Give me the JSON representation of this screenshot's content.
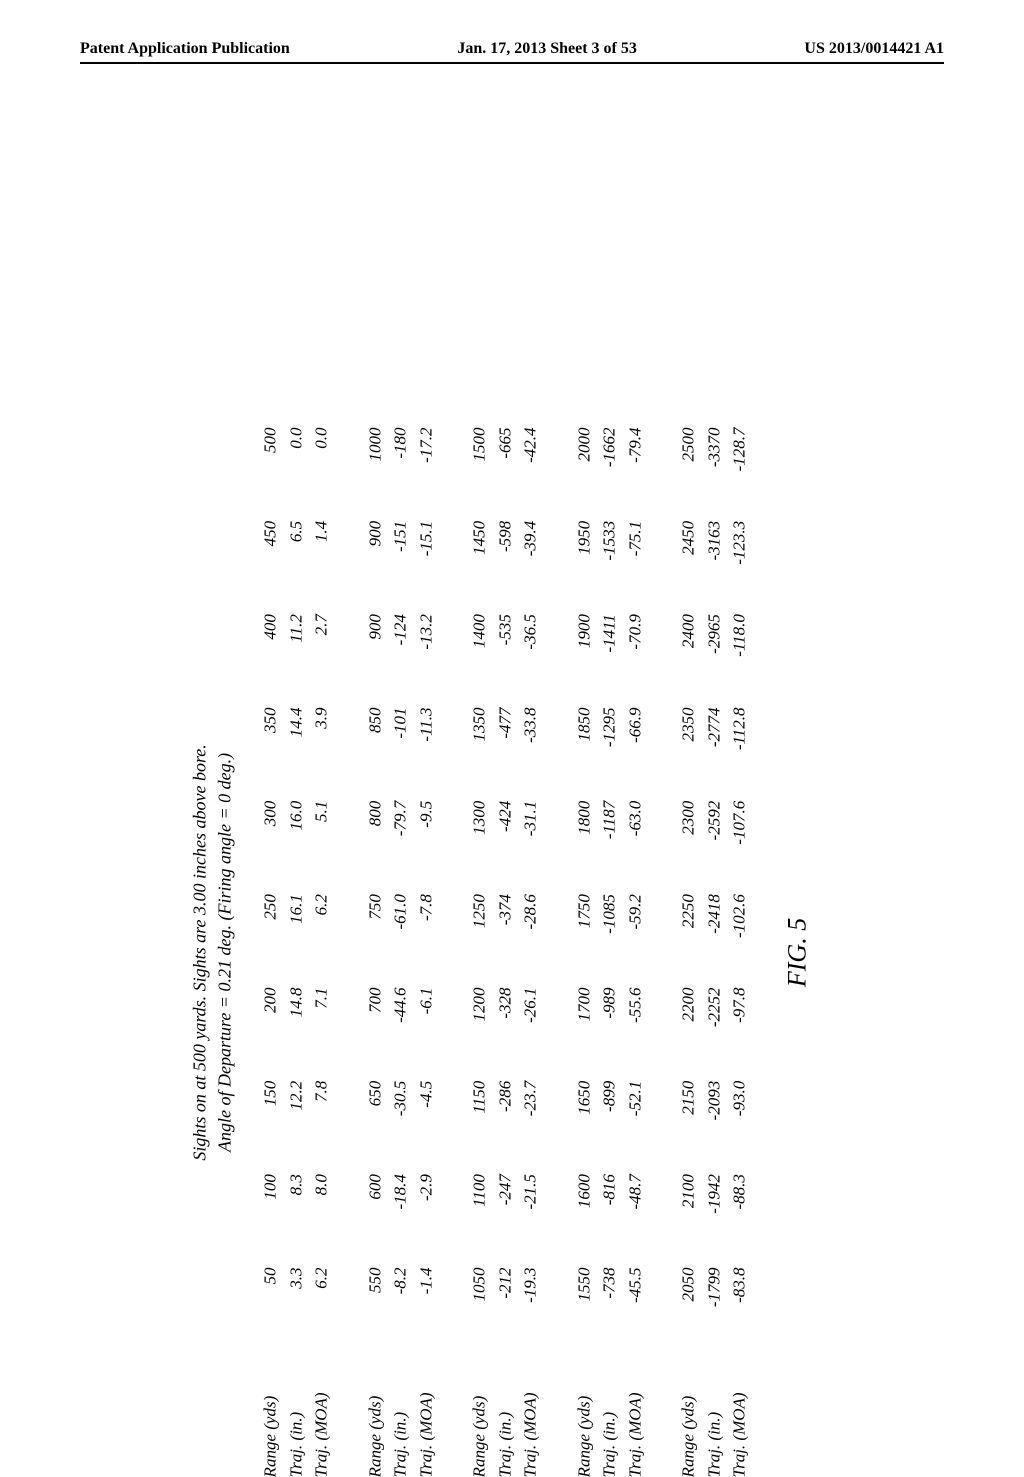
{
  "header": {
    "left": "Patent Application Publication",
    "middle": "Jan. 17, 2013  Sheet 3 of 53",
    "right": "US 2013/0014421 A1"
  },
  "title": {
    "line1": "Sights on at 500 yards. Sights are 3.00 inches above bore.",
    "line2": "Angle of Departure = 0.21 deg. (Firing angle = 0 deg.)"
  },
  "row_labels": {
    "range": "Range (yds)",
    "traj_in": "Traj. (in.)",
    "traj_moa": "Traj. (MOA)"
  },
  "blocks": [
    {
      "cols": [
        {
          "range": "50",
          "in": "3.3",
          "moa": "6.2"
        },
        {
          "range": "100",
          "in": "8.3",
          "moa": "8.0"
        },
        {
          "range": "150",
          "in": "12.2",
          "moa": "7.8"
        },
        {
          "range": "200",
          "in": "14.8",
          "moa": "7.1"
        },
        {
          "range": "250",
          "in": "16.1",
          "moa": "6.2"
        },
        {
          "range": "300",
          "in": "16.0",
          "moa": "5.1"
        },
        {
          "range": "350",
          "in": "14.4",
          "moa": "3.9"
        },
        {
          "range": "400",
          "in": "11.2",
          "moa": "2.7"
        },
        {
          "range": "450",
          "in": "6.5",
          "moa": "1.4"
        },
        {
          "range": "500",
          "in": "0.0",
          "moa": "0.0"
        }
      ]
    },
    {
      "cols": [
        {
          "range": "550",
          "in": "-8.2",
          "moa": "-1.4"
        },
        {
          "range": "600",
          "in": "-18.4",
          "moa": "-2.9"
        },
        {
          "range": "650",
          "in": "-30.5",
          "moa": "-4.5"
        },
        {
          "range": "700",
          "in": "-44.6",
          "moa": "-6.1"
        },
        {
          "range": "750",
          "in": "-61.0",
          "moa": "-7.8"
        },
        {
          "range": "800",
          "in": "-79.7",
          "moa": "-9.5"
        },
        {
          "range": "850",
          "in": "-101",
          "moa": "-11.3"
        },
        {
          "range": "900",
          "in": "-124",
          "moa": "-13.2"
        },
        {
          "range": "900",
          "in": "-151",
          "moa": "-15.1"
        },
        {
          "range": "1000",
          "in": "-180",
          "moa": "-17.2"
        }
      ]
    },
    {
      "cols": [
        {
          "range": "1050",
          "in": "-212",
          "moa": "-19.3"
        },
        {
          "range": "1100",
          "in": "-247",
          "moa": "-21.5"
        },
        {
          "range": "1150",
          "in": "-286",
          "moa": "-23.7"
        },
        {
          "range": "1200",
          "in": "-328",
          "moa": "-26.1"
        },
        {
          "range": "1250",
          "in": "-374",
          "moa": "-28.6"
        },
        {
          "range": "1300",
          "in": "-424",
          "moa": "-31.1"
        },
        {
          "range": "1350",
          "in": "-477",
          "moa": "-33.8"
        },
        {
          "range": "1400",
          "in": "-535",
          "moa": "-36.5"
        },
        {
          "range": "1450",
          "in": "-598",
          "moa": "-39.4"
        },
        {
          "range": "1500",
          "in": "-665",
          "moa": "-42.4"
        }
      ]
    },
    {
      "cols": [
        {
          "range": "1550",
          "in": "-738",
          "moa": "-45.5"
        },
        {
          "range": "1600",
          "in": "-816",
          "moa": "-48.7"
        },
        {
          "range": "1650",
          "in": "-899",
          "moa": "-52.1"
        },
        {
          "range": "1700",
          "in": "-989",
          "moa": "-55.6"
        },
        {
          "range": "1750",
          "in": "-1085",
          "moa": "-59.2"
        },
        {
          "range": "1800",
          "in": "-1187",
          "moa": "-63.0"
        },
        {
          "range": "1850",
          "in": "-1295",
          "moa": "-66.9"
        },
        {
          "range": "1900",
          "in": "-1411",
          "moa": "-70.9"
        },
        {
          "range": "1950",
          "in": "-1533",
          "moa": "-75.1"
        },
        {
          "range": "2000",
          "in": "-1662",
          "moa": "-79.4"
        }
      ]
    },
    {
      "cols": [
        {
          "range": "2050",
          "in": "-1799",
          "moa": "-83.8"
        },
        {
          "range": "2100",
          "in": "-1942",
          "moa": "-88.3"
        },
        {
          "range": "2150",
          "in": "-2093",
          "moa": "-93.0"
        },
        {
          "range": "2200",
          "in": "-2252",
          "moa": "-97.8"
        },
        {
          "range": "2250",
          "in": "-2418",
          "moa": "-102.6"
        },
        {
          "range": "2300",
          "in": "-2592",
          "moa": "-107.6"
        },
        {
          "range": "2350",
          "in": "-2774",
          "moa": "-112.8"
        },
        {
          "range": "2400",
          "in": "-2965",
          "moa": "-118.0"
        },
        {
          "range": "2450",
          "in": "-3163",
          "moa": "-123.3"
        },
        {
          "range": "2500",
          "in": "-3370",
          "moa": "-128.7"
        }
      ]
    }
  ],
  "figure_label": "FIG. 5"
}
